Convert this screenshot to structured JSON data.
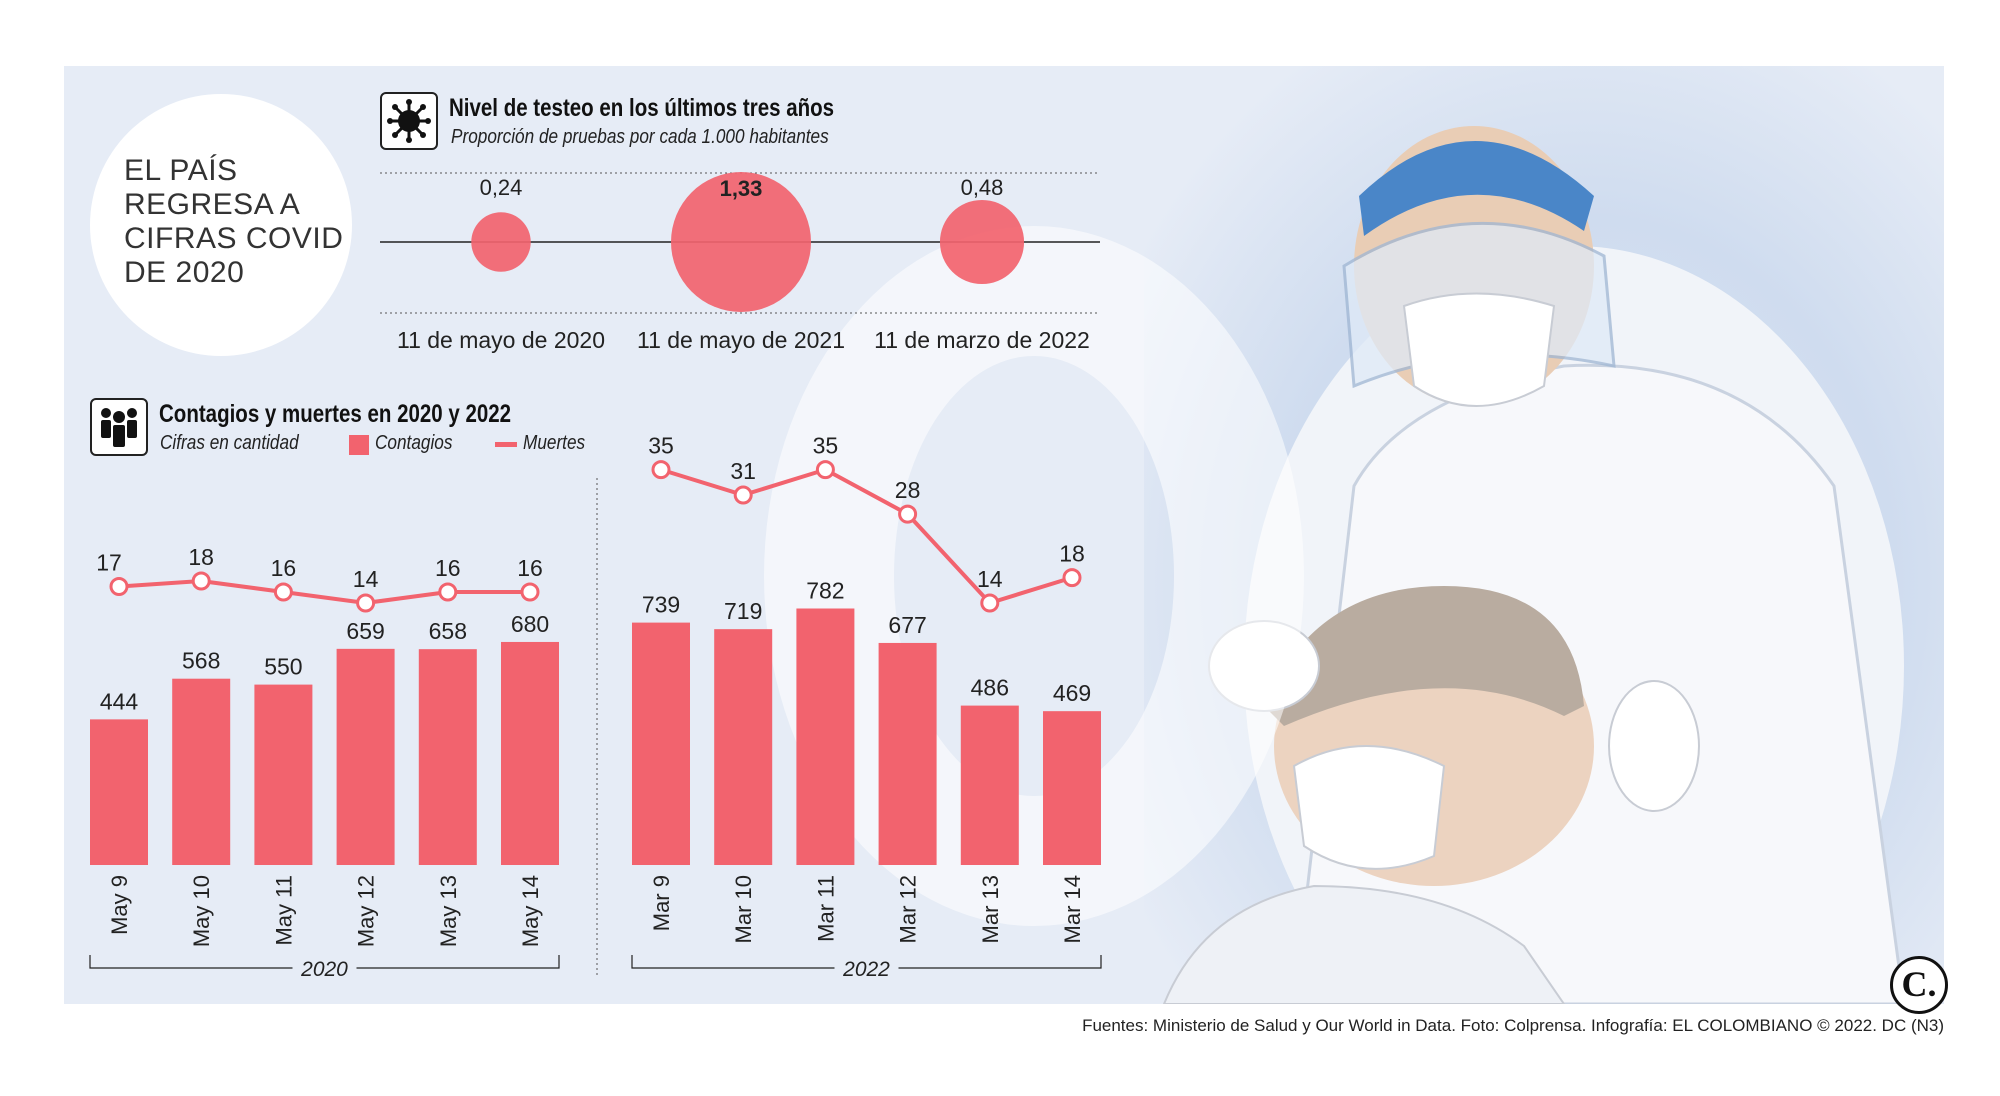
{
  "title": "EL PAÍS REGRESA A CIFRAS COVID DE 2020",
  "testing": {
    "title": "Nivel de testeo en los últimos tres años",
    "subtitle": "Proporción de pruebas por cada 1.000 habitantes",
    "icon": "virus-icon"
  },
  "cases": {
    "title": "Contagios y muertes en 2020 y 2022",
    "subtitle": "Cifras en cantidad",
    "legend_bars": "Contagios",
    "legend_line": "Muertes",
    "icon": "people-icon"
  },
  "source": "Fuentes: Ministerio de Salud y Our World in Data. Foto: Colprensa. Infografía: EL COLOMBIANO © 2022. DC (N3)",
  "logo": "C.",
  "colors": {
    "accent": "#f2636e",
    "text": "#222222",
    "panel": "#e6ecf6"
  },
  "chart_data": [
    {
      "type": "scatter",
      "title": "Nivel de testeo en los últimos tres años",
      "categories": [
        "11 de mayo de 2020",
        "11 de mayo de 2021",
        "11 de marzo de 2022"
      ],
      "values": [
        0.24,
        1.33,
        0.48
      ],
      "labels": [
        "0,24",
        "1,33",
        "0,48"
      ]
    },
    {
      "type": "bar",
      "group": "2020",
      "categories": [
        "May 9",
        "May 10",
        "May 11",
        "May 12",
        "May 13",
        "May 14"
      ],
      "series": [
        {
          "name": "Contagios",
          "type": "bar",
          "values": [
            444,
            568,
            550,
            659,
            658,
            680
          ]
        },
        {
          "name": "Muertes",
          "type": "line",
          "values": [
            17,
            18,
            16,
            14,
            16,
            16
          ]
        }
      ]
    },
    {
      "type": "bar",
      "group": "2022",
      "categories": [
        "Mar 9",
        "Mar 10",
        "Mar 11",
        "Mar 12",
        "Mar 13",
        "Mar 14"
      ],
      "series": [
        {
          "name": "Contagios",
          "type": "bar",
          "values": [
            739,
            719,
            782,
            677,
            486,
            469
          ]
        },
        {
          "name": "Muertes",
          "type": "line",
          "values": [
            35,
            31,
            35,
            28,
            14,
            18
          ]
        }
      ]
    }
  ]
}
